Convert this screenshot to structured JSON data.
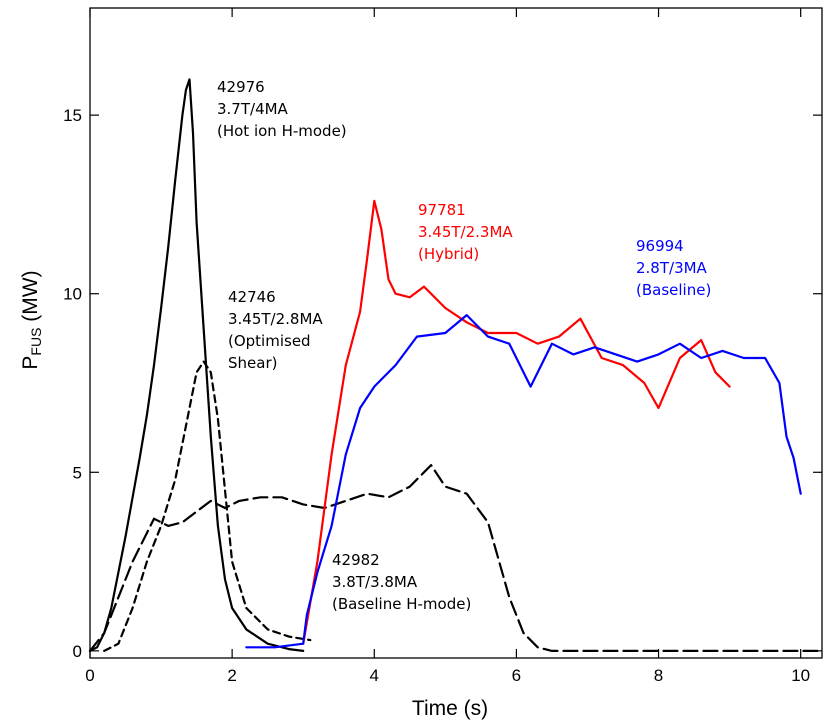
{
  "chart_data": {
    "type": "line",
    "xlabel": "Time (s)",
    "ylabel_main": "P",
    "ylabel_sub": "FUS",
    "ylabel_unit": " (MW)",
    "xlim": [
      0,
      10.3
    ],
    "ylim": [
      -0.2,
      18
    ],
    "xticks": [
      0,
      2,
      4,
      6,
      8,
      10
    ],
    "yticks": [
      0,
      5,
      10,
      15
    ],
    "grid": false,
    "series": [
      {
        "name": "42976",
        "color": "#000000",
        "dash": "solid",
        "points": [
          [
            0,
            0
          ],
          [
            0.1,
            0.1
          ],
          [
            0.2,
            0.5
          ],
          [
            0.3,
            1.2
          ],
          [
            0.4,
            2.2
          ],
          [
            0.5,
            3.2
          ],
          [
            0.6,
            4.3
          ],
          [
            0.7,
            5.4
          ],
          [
            0.8,
            6.6
          ],
          [
            0.9,
            8.0
          ],
          [
            1.0,
            9.6
          ],
          [
            1.1,
            11.3
          ],
          [
            1.2,
            13.2
          ],
          [
            1.3,
            15.0
          ],
          [
            1.35,
            15.7
          ],
          [
            1.4,
            16.0
          ],
          [
            1.45,
            14.5
          ],
          [
            1.5,
            12.0
          ],
          [
            1.6,
            9.0
          ],
          [
            1.7,
            6.0
          ],
          [
            1.8,
            3.5
          ],
          [
            1.9,
            2.0
          ],
          [
            2.0,
            1.2
          ],
          [
            2.2,
            0.6
          ],
          [
            2.5,
            0.2
          ],
          [
            2.8,
            0.05
          ],
          [
            3.0,
            0
          ]
        ]
      },
      {
        "name": "42746",
        "color": "#000000",
        "dash": "dashed",
        "points": [
          [
            0.2,
            0
          ],
          [
            0.4,
            0.2
          ],
          [
            0.6,
            1.2
          ],
          [
            0.8,
            2.5
          ],
          [
            1.0,
            3.5
          ],
          [
            1.2,
            4.8
          ],
          [
            1.4,
            6.8
          ],
          [
            1.5,
            7.8
          ],
          [
            1.6,
            8.1
          ],
          [
            1.7,
            7.8
          ],
          [
            1.8,
            6.5
          ],
          [
            1.9,
            4.5
          ],
          [
            2.0,
            2.5
          ],
          [
            2.2,
            1.2
          ],
          [
            2.5,
            0.6
          ],
          [
            2.8,
            0.4
          ],
          [
            3.1,
            0.3
          ]
        ]
      },
      {
        "name": "42982",
        "color": "#000000",
        "dash": "longdash",
        "points": [
          [
            0,
            0
          ],
          [
            0.2,
            0.5
          ],
          [
            0.4,
            1.5
          ],
          [
            0.6,
            2.5
          ],
          [
            0.8,
            3.3
          ],
          [
            0.9,
            3.7
          ],
          [
            1.1,
            3.5
          ],
          [
            1.3,
            3.6
          ],
          [
            1.5,
            3.9
          ],
          [
            1.7,
            4.2
          ],
          [
            1.9,
            4.0
          ],
          [
            2.1,
            4.2
          ],
          [
            2.4,
            4.3
          ],
          [
            2.7,
            4.3
          ],
          [
            3.0,
            4.1
          ],
          [
            3.3,
            4.0
          ],
          [
            3.6,
            4.2
          ],
          [
            3.9,
            4.4
          ],
          [
            4.2,
            4.3
          ],
          [
            4.5,
            4.6
          ],
          [
            4.8,
            5.2
          ],
          [
            5.0,
            4.6
          ],
          [
            5.3,
            4.4
          ],
          [
            5.6,
            3.6
          ],
          [
            5.9,
            1.5
          ],
          [
            6.1,
            0.5
          ],
          [
            6.3,
            0.1
          ],
          [
            6.5,
            0
          ],
          [
            10.3,
            0
          ]
        ]
      },
      {
        "name": "97781",
        "color": "#ff0000",
        "dash": "solid",
        "points": [
          [
            3.0,
            0.2
          ],
          [
            3.2,
            2.5
          ],
          [
            3.4,
            5.5
          ],
          [
            3.6,
            8.0
          ],
          [
            3.8,
            9.5
          ],
          [
            3.9,
            11.0
          ],
          [
            4.0,
            12.6
          ],
          [
            4.1,
            11.8
          ],
          [
            4.2,
            10.4
          ],
          [
            4.3,
            10.0
          ],
          [
            4.5,
            9.9
          ],
          [
            4.7,
            10.2
          ],
          [
            5.0,
            9.6
          ],
          [
            5.3,
            9.2
          ],
          [
            5.6,
            8.9
          ],
          [
            6.0,
            8.9
          ],
          [
            6.3,
            8.6
          ],
          [
            6.6,
            8.8
          ],
          [
            6.9,
            9.3
          ],
          [
            7.2,
            8.2
          ],
          [
            7.5,
            8.0
          ],
          [
            7.8,
            7.5
          ],
          [
            8.0,
            6.8
          ],
          [
            8.3,
            8.2
          ],
          [
            8.6,
            8.7
          ],
          [
            8.8,
            7.8
          ],
          [
            9.0,
            7.4
          ]
        ]
      },
      {
        "name": "96994",
        "color": "#0000ff",
        "dash": "solid",
        "points": [
          [
            2.2,
            0.1
          ],
          [
            2.6,
            0.1
          ],
          [
            3.0,
            0.2
          ],
          [
            3.05,
            1.0
          ],
          [
            3.2,
            2.2
          ],
          [
            3.4,
            3.5
          ],
          [
            3.6,
            5.5
          ],
          [
            3.8,
            6.8
          ],
          [
            4.0,
            7.4
          ],
          [
            4.3,
            8.0
          ],
          [
            4.6,
            8.8
          ],
          [
            5.0,
            8.9
          ],
          [
            5.3,
            9.4
          ],
          [
            5.6,
            8.8
          ],
          [
            5.9,
            8.6
          ],
          [
            6.2,
            7.4
          ],
          [
            6.5,
            8.6
          ],
          [
            6.8,
            8.3
          ],
          [
            7.1,
            8.5
          ],
          [
            7.4,
            8.3
          ],
          [
            7.7,
            8.1
          ],
          [
            8.0,
            8.3
          ],
          [
            8.3,
            8.6
          ],
          [
            8.6,
            8.2
          ],
          [
            8.9,
            8.4
          ],
          [
            9.2,
            8.2
          ],
          [
            9.5,
            8.2
          ],
          [
            9.7,
            7.5
          ],
          [
            9.8,
            6.0
          ],
          [
            9.9,
            5.4
          ],
          [
            10.0,
            4.4
          ]
        ]
      }
    ]
  },
  "annotations": [
    {
      "color": "#000000",
      "lines": [
        "42976",
        "3.7T/4MA",
        "(Hot ion H-mode)"
      ]
    },
    {
      "color": "#000000",
      "lines": [
        "42746",
        "3.45T/2.8MA",
        "(Optimised",
        "Shear)"
      ]
    },
    {
      "color": "#000000",
      "lines": [
        "42982",
        "3.8T/3.8MA",
        "(Baseline H-mode)"
      ]
    },
    {
      "color": "#ff0000",
      "lines": [
        "97781",
        "3.45T/2.3MA",
        "(Hybrid)"
      ]
    },
    {
      "color": "#0000ff",
      "lines": [
        "96994",
        "2.8T/3MA",
        "(Baseline)"
      ]
    }
  ]
}
